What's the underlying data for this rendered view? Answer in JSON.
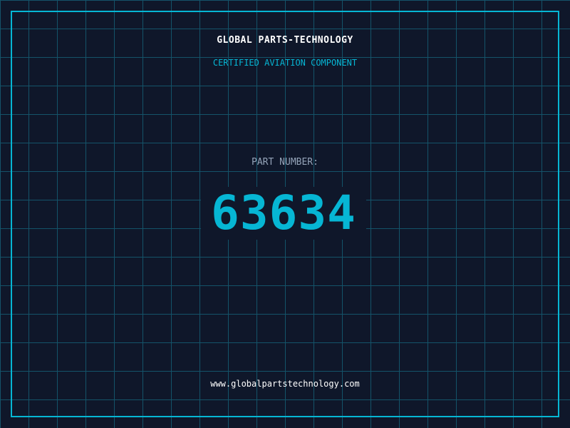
{
  "header": {
    "title": "GLOBAL PARTS-TECHNOLOGY",
    "subtitle": "CERTIFIED AVIATION COMPONENT"
  },
  "part": {
    "label": "PART NUMBER:",
    "number": "63634"
  },
  "footer": {
    "url": "www.globalpartstechnology.com"
  },
  "colors": {
    "background": "#0f172a",
    "accent": "#06b6d4",
    "grid": "#155e75"
  }
}
